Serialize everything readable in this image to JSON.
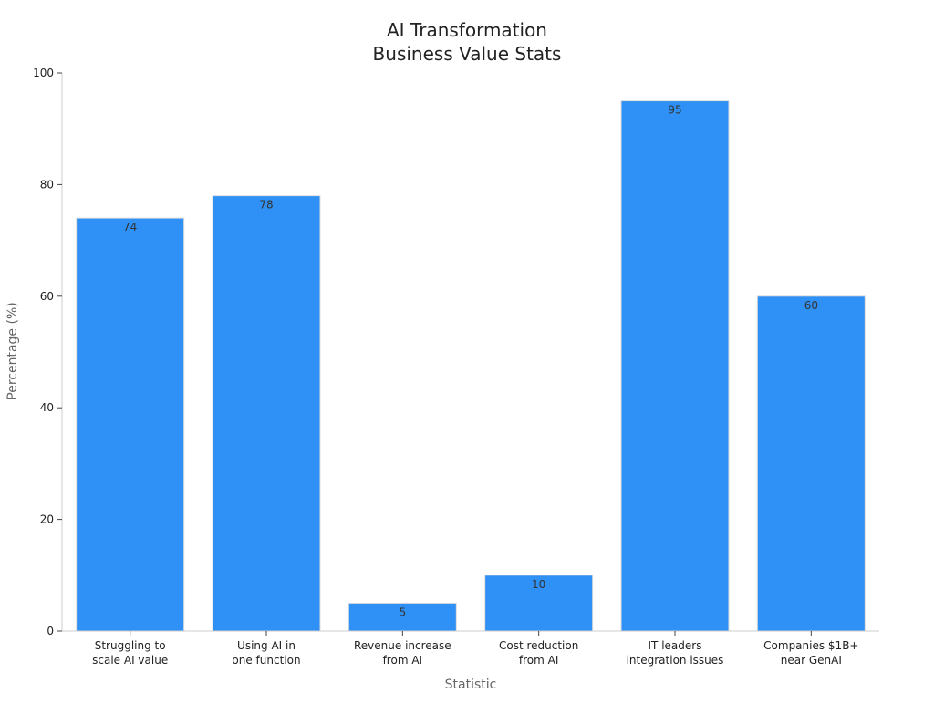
{
  "chart_data": {
    "type": "bar",
    "title": [
      "AI Transformation",
      "Business Value Stats"
    ],
    "xlabel": "Statistic",
    "ylabel": "Percentage (%)",
    "categories": [
      [
        "Struggling to",
        "scale AI value"
      ],
      [
        "Using AI in",
        "one function"
      ],
      [
        "Revenue increase",
        "from AI"
      ],
      [
        "Cost reduction",
        "from AI"
      ],
      [
        "IT leaders",
        "integration issues"
      ],
      [
        "Companies $1B+",
        "near GenAI"
      ]
    ],
    "values": [
      74,
      78,
      5,
      10,
      95,
      60
    ],
    "ylim": [
      0,
      100
    ],
    "yticks": [
      0,
      20,
      40,
      60,
      80,
      100
    ],
    "bar_color": "#2f90f5",
    "bar_edge_color": "#dddddd",
    "grid": false,
    "legend": false
  }
}
